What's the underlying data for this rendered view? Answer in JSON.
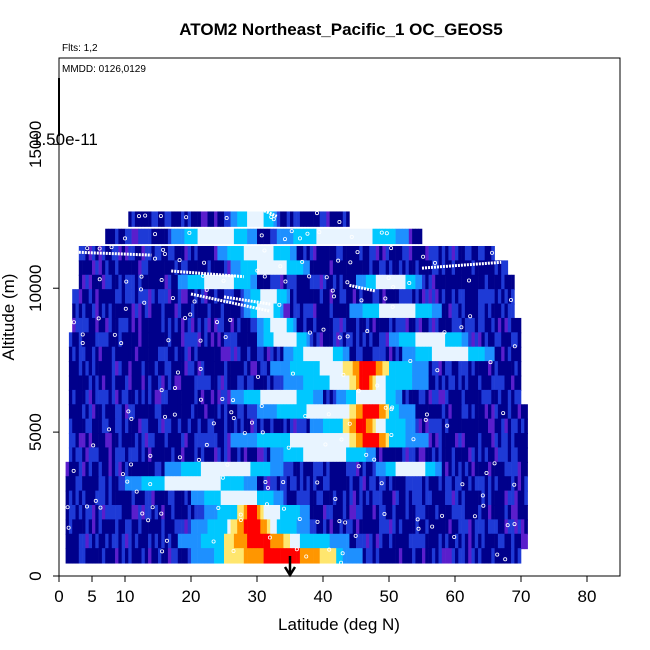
{
  "chart_data": {
    "type": "heatmap",
    "title": "ATOM2 Northeast_Pacific_1 OC_GEOS5",
    "flights_note": "Flts: 1,2",
    "dates_note": "MMDD: 0126,0129",
    "colorbar_label": "1.50e-11",
    "xlabel": "Latitude (deg N)",
    "ylabel": "Altitude (m)",
    "xlim": [
      0,
      85
    ],
    "ylim": [
      0,
      18000
    ],
    "xticks": [
      0,
      5,
      10,
      20,
      30,
      40,
      50,
      60,
      70,
      80
    ],
    "yticks": [
      0,
      5000,
      10000,
      15000
    ],
    "grid": false,
    "arrow_latitude": 35,
    "colorscale": [
      "#00008b",
      "#1e3ad6",
      "#1e90ff",
      "#00c8ff",
      "#e8f4ff",
      "#ffe66e",
      "#ff9600",
      "#ff0000"
    ],
    "rows": [
      {
        "alt": 12400,
        "lat_min": 10.5,
        "lat_max": 44,
        "hot": [],
        "cyan": [
          [
            26,
            33
          ]
        ]
      },
      {
        "alt": 11800,
        "lat_min": 7,
        "lat_max": 55,
        "hot": [],
        "cyan": [
          [
            17,
            30
          ],
          [
            33,
            53
          ]
        ]
      },
      {
        "alt": 11200,
        "lat_min": 3,
        "lat_max": 66,
        "hot": [],
        "cyan": [
          [
            24,
            36
          ]
        ]
      },
      {
        "alt": 10700,
        "lat_min": 3,
        "lat_max": 68,
        "hot": [],
        "cyan": [
          [
            26,
            38
          ]
        ]
      },
      {
        "alt": 10200,
        "lat_min": 3,
        "lat_max": 69,
        "hot": [],
        "cyan": [
          [
            18,
            30
          ],
          [
            45,
            55
          ]
        ]
      },
      {
        "alt": 9700,
        "lat_min": 2,
        "lat_max": 69,
        "hot": [],
        "cyan": [
          [
            28,
            35
          ]
        ]
      },
      {
        "alt": 9200,
        "lat_min": 2,
        "lat_max": 69,
        "hot": [],
        "cyan": [
          [
            28,
            34
          ],
          [
            44,
            58
          ]
        ]
      },
      {
        "alt": 8700,
        "lat_min": 2,
        "lat_max": 70,
        "hot": [],
        "cyan": [
          [
            30,
            36
          ]
        ]
      },
      {
        "alt": 8200,
        "lat_min": 1.5,
        "lat_max": 70,
        "hot": [],
        "cyan": [
          [
            30,
            38
          ],
          [
            50,
            62
          ]
        ]
      },
      {
        "alt": 7700,
        "lat_min": 1.5,
        "lat_max": 70,
        "hot": [],
        "cyan": [
          [
            34,
            44
          ],
          [
            52,
            66
          ]
        ]
      },
      {
        "alt": 7200,
        "lat_min": 1.5,
        "lat_max": 70,
        "hot": [
          [
            43,
            50
          ]
        ],
        "cyan": [
          [
            32,
            56
          ]
        ]
      },
      {
        "alt": 6700,
        "lat_min": 1.5,
        "lat_max": 70,
        "hot": [
          [
            44,
            48
          ]
        ],
        "cyan": [
          [
            34,
            56
          ]
        ]
      },
      {
        "alt": 6200,
        "lat_min": 1.5,
        "lat_max": 70,
        "hot": [],
        "cyan": [
          [
            26,
            40
          ],
          [
            42,
            52
          ]
        ]
      },
      {
        "alt": 5700,
        "lat_min": 1.5,
        "lat_max": 71,
        "hot": [
          [
            44,
            50
          ]
        ],
        "cyan": [
          [
            30,
            54
          ]
        ]
      },
      {
        "alt": 5200,
        "lat_min": 1.5,
        "lat_max": 71,
        "hot": [
          [
            43,
            48
          ]
        ],
        "cyan": [
          [
            38,
            54
          ]
        ]
      },
      {
        "alt": 4700,
        "lat_min": 1.5,
        "lat_max": 71,
        "hot": [
          [
            44,
            50
          ]
        ],
        "cyan": [
          [
            26,
            56
          ]
        ]
      },
      {
        "alt": 4200,
        "lat_min": 1.5,
        "lat_max": 71,
        "hot": [],
        "cyan": [
          [
            32,
            48
          ]
        ]
      },
      {
        "alt": 3700,
        "lat_min": 1,
        "lat_max": 71,
        "hot": [],
        "cyan": [
          [
            16,
            34
          ],
          [
            48,
            58
          ]
        ]
      },
      {
        "alt": 3200,
        "lat_min": 1,
        "lat_max": 71,
        "hot": [],
        "cyan": [
          [
            10,
            30
          ]
        ]
      },
      {
        "alt": 2700,
        "lat_min": 1,
        "lat_max": 71,
        "hot": [],
        "cyan": [
          [
            20,
            34
          ]
        ]
      },
      {
        "alt": 2200,
        "lat_min": 1,
        "lat_max": 71,
        "hot": [
          [
            27,
            31
          ]
        ],
        "cyan": [
          [
            22,
            38
          ]
        ]
      },
      {
        "alt": 1700,
        "lat_min": 1,
        "lat_max": 71,
        "hot": [
          [
            26,
            32
          ]
        ],
        "cyan": [
          [
            20,
            38
          ]
        ]
      },
      {
        "alt": 1200,
        "lat_min": 1,
        "lat_max": 71,
        "hot": [
          [
            25,
            35
          ]
        ],
        "cyan": [
          [
            18,
            44
          ]
        ]
      },
      {
        "alt": 700,
        "lat_min": 1,
        "lat_max": 70,
        "hot": [
          [
            25,
            42
          ]
        ],
        "cyan": [
          [
            20,
            46
          ]
        ]
      }
    ],
    "flight_tracks": [
      {
        "points": [
          [
            29,
            12900
          ],
          [
            33,
            12500
          ]
        ]
      },
      {
        "points": [
          [
            3,
            11250
          ],
          [
            14,
            11150
          ]
        ]
      },
      {
        "points": [
          [
            17,
            10600
          ],
          [
            28,
            10400
          ]
        ]
      },
      {
        "points": [
          [
            20,
            9800
          ],
          [
            32,
            9200
          ]
        ]
      },
      {
        "points": [
          [
            44,
            10100
          ],
          [
            48,
            9900
          ]
        ]
      },
      {
        "points": [
          [
            55,
            10700
          ],
          [
            67,
            10900
          ]
        ]
      },
      {
        "points": [
          [
            25,
            9700
          ],
          [
            32,
            9450
          ]
        ]
      }
    ]
  }
}
